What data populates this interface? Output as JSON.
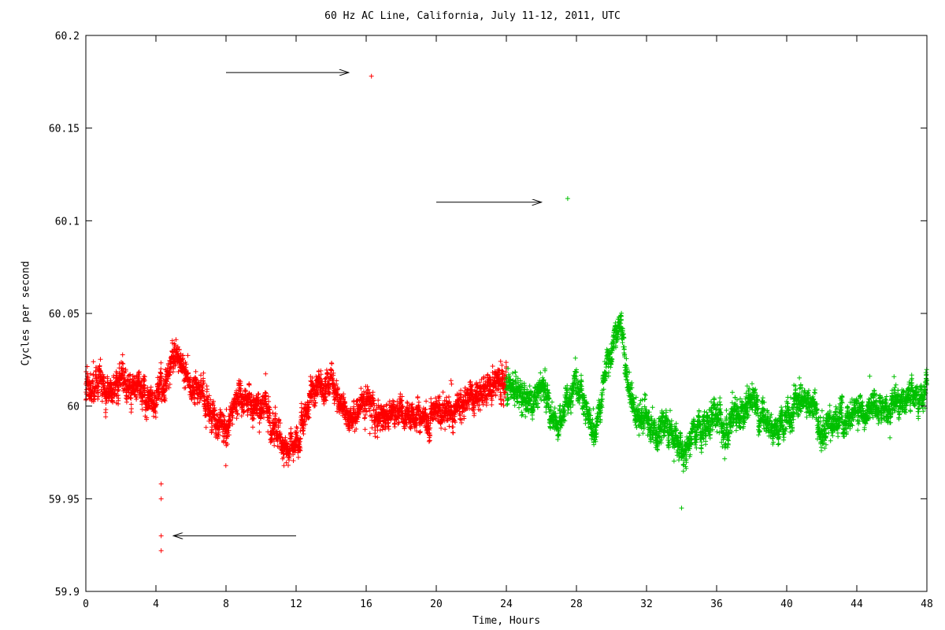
{
  "chart_data": {
    "type": "scatter",
    "title": "60 Hz AC Line, California, July 11-12, 2011, UTC",
    "xlabel": "Time, Hours",
    "ylabel": "Cycles per second",
    "xlim": [
      0,
      48
    ],
    "ylim": [
      59.9,
      60.2
    ],
    "xticks": [
      0,
      4,
      8,
      12,
      16,
      20,
      24,
      28,
      32,
      36,
      40,
      44,
      48
    ],
    "yticks": [
      59.9,
      59.95,
      60,
      60.05,
      60.1,
      60.15,
      60.2
    ],
    "ytick_labels": [
      "59.9",
      "59.95",
      "60",
      "60.05",
      "60.1",
      "60.15",
      "60.2"
    ],
    "grid": false,
    "marker": "plus",
    "series": [
      {
        "color": "#ff0000",
        "x_range": [
          0,
          24
        ],
        "x": [
          0,
          0.5,
          1,
          1.5,
          2,
          2.5,
          3,
          3.5,
          4,
          4.5,
          5,
          5.5,
          6,
          6.5,
          7,
          7.5,
          8,
          8.5,
          9,
          9.5,
          10,
          10.5,
          11,
          11.5,
          12,
          12.5,
          13,
          13.5,
          14,
          14.5,
          15,
          15.5,
          16,
          16.5,
          17,
          17.5,
          18,
          18.5,
          19,
          19.5,
          20,
          20.5,
          21,
          21.5,
          22,
          22.5,
          23,
          23.5,
          24
        ],
        "y": [
          60.008,
          60.015,
          60.01,
          60.005,
          60.012,
          60.008,
          60.015,
          60.005,
          60.0,
          60.012,
          60.028,
          60.025,
          60.005,
          60.01,
          60.0,
          59.99,
          59.985,
          60.0,
          60.005,
          59.998,
          60.002,
          59.99,
          59.985,
          59.975,
          59.978,
          59.995,
          60.01,
          60.01,
          60.015,
          60.0,
          59.995,
          59.997,
          60.005,
          59.992,
          59.995,
          59.993,
          59.998,
          59.994,
          59.995,
          59.99,
          59.997,
          59.996,
          59.998,
          60.0,
          60.003,
          60.006,
          60.01,
          60.015,
          60.015
        ],
        "outliers": [
          [
            4.3,
            59.958
          ],
          [
            4.3,
            59.95
          ],
          [
            4.3,
            59.93
          ],
          [
            4.3,
            59.922
          ],
          [
            16.3,
            60.178
          ]
        ]
      },
      {
        "color": "#00c000",
        "x_range": [
          24,
          48
        ],
        "x": [
          24,
          24.5,
          25,
          25.5,
          26,
          26.5,
          27,
          27.5,
          28,
          28.5,
          29,
          29.5,
          30,
          30.5,
          31,
          31.5,
          32,
          32.5,
          33,
          33.5,
          34,
          34.5,
          35,
          35.5,
          36,
          36.5,
          37,
          37.5,
          38,
          38.5,
          39,
          39.5,
          40,
          40.5,
          41,
          41.5,
          42,
          42.5,
          43,
          43.5,
          44,
          44.5,
          45,
          45.5,
          46,
          46.5,
          47,
          47.5,
          48
        ],
        "y": [
          60.01,
          60.008,
          60.005,
          60.002,
          60.015,
          59.995,
          59.99,
          60.005,
          60.015,
          60.0,
          59.98,
          60.01,
          60.03,
          60.045,
          60.01,
          59.99,
          59.995,
          59.985,
          59.99,
          59.985,
          59.975,
          59.98,
          59.985,
          59.99,
          59.995,
          59.985,
          60.0,
          59.99,
          60.005,
          59.995,
          59.99,
          59.985,
          59.995,
          60.0,
          60.005,
          59.998,
          59.985,
          59.99,
          59.995,
          59.993,
          60.0,
          59.995,
          60.003,
          59.998,
          60.0,
          60.003,
          60.005,
          60.005,
          60.01
        ],
        "outliers": [
          [
            27.5,
            60.112
          ],
          [
            34.0,
            59.945
          ]
        ]
      }
    ],
    "annotations": [
      {
        "type": "arrow",
        "from": [
          8.0,
          60.18
        ],
        "to": [
          15.0,
          60.18
        ]
      },
      {
        "type": "arrow",
        "from": [
          20.0,
          60.11
        ],
        "to": [
          26.0,
          60.11
        ]
      },
      {
        "type": "arrow",
        "from": [
          12.0,
          59.93
        ],
        "to": [
          5.0,
          59.93
        ]
      }
    ]
  }
}
